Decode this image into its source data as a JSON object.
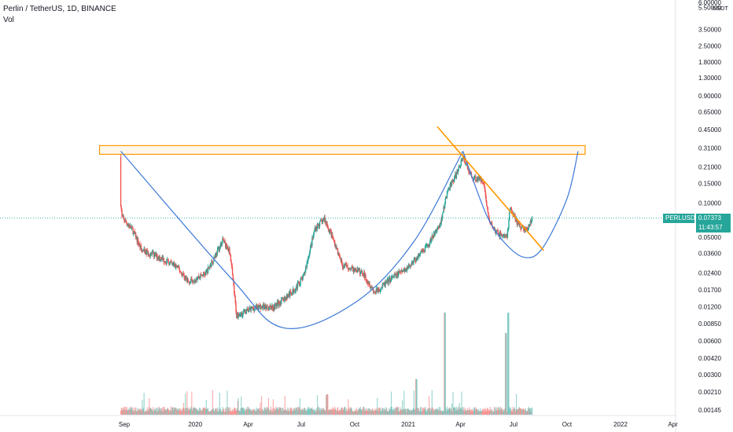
{
  "header": {
    "title": "Perlin / TetherUS, 1D, BINANCE",
    "volume_label": "Vol"
  },
  "colors": {
    "up": "#26a69a",
    "down": "#ef5350",
    "cup": "#3c78d8",
    "resistance": "#ff9800",
    "last_price_bg": "#26a69a",
    "symbol_tag_bg": "#26a69a"
  },
  "price_axis": {
    "unit": "USDT",
    "labels": [
      "6.00000",
      "5.50000",
      "3.50000",
      "2.50000",
      "1.80000",
      "1.30000",
      "0.90000",
      "0.65000",
      "0.45000",
      "0.31000",
      "0.21000",
      "0.15000",
      "0.10000",
      "0.05000",
      "0.03600",
      "0.02400",
      "0.01700",
      "0.01200",
      "0.00850",
      "0.00600",
      "0.00420",
      "0.00300",
      "0.00210",
      "0.00145"
    ]
  },
  "time_axis": {
    "labels": [
      "Sep",
      "2020",
      "Apr",
      "Jul",
      "Oct",
      "2021",
      "Apr",
      "Jul",
      "Oct",
      "2022",
      "Apr"
    ]
  },
  "last_price": {
    "symbol": "PERLUSDT",
    "price": "0.07373",
    "countdown": "11:43:57"
  },
  "chart_data": {
    "type": "candlestick",
    "scale": "log",
    "symbol": "PERLUSDT",
    "exchange": "BINANCE",
    "interval": "1D",
    "y_range": [
      0.0012,
      6.0
    ],
    "x_range": [
      "2019-08-20",
      "2022-05-01"
    ],
    "price_path": [
      {
        "date": "2019-08-26",
        "close": 0.1
      },
      {
        "date": "2019-08-28",
        "close": 0.075
      },
      {
        "date": "2019-09-15",
        "close": 0.058
      },
      {
        "date": "2019-10-01",
        "close": 0.038
      },
      {
        "date": "2019-11-01",
        "close": 0.033
      },
      {
        "date": "2019-12-01",
        "close": 0.027
      },
      {
        "date": "2019-12-20",
        "close": 0.02
      },
      {
        "date": "2020-01-20",
        "close": 0.024
      },
      {
        "date": "2020-02-18",
        "close": 0.047
      },
      {
        "date": "2020-03-01",
        "close": 0.036
      },
      {
        "date": "2020-03-12",
        "close": 0.01
      },
      {
        "date": "2020-04-15",
        "close": 0.012
      },
      {
        "date": "2020-05-15",
        "close": 0.012
      },
      {
        "date": "2020-06-15",
        "close": 0.016
      },
      {
        "date": "2020-07-05",
        "close": 0.022
      },
      {
        "date": "2020-07-25",
        "close": 0.06
      },
      {
        "date": "2020-08-10",
        "close": 0.072
      },
      {
        "date": "2020-08-25",
        "close": 0.048
      },
      {
        "date": "2020-09-10",
        "close": 0.028
      },
      {
        "date": "2020-10-15",
        "close": 0.024
      },
      {
        "date": "2020-11-05",
        "close": 0.016
      },
      {
        "date": "2020-12-01",
        "close": 0.021
      },
      {
        "date": "2021-01-01",
        "close": 0.027
      },
      {
        "date": "2021-02-01",
        "close": 0.04
      },
      {
        "date": "2021-02-25",
        "close": 0.065
      },
      {
        "date": "2021-03-10",
        "close": 0.13
      },
      {
        "date": "2021-03-25",
        "close": 0.18
      },
      {
        "date": "2021-04-05",
        "close": 0.26
      },
      {
        "date": "2021-04-20",
        "close": 0.17
      },
      {
        "date": "2021-05-10",
        "close": 0.16
      },
      {
        "date": "2021-05-20",
        "close": 0.07
      },
      {
        "date": "2021-06-01",
        "close": 0.055
      },
      {
        "date": "2021-06-20",
        "close": 0.05
      },
      {
        "date": "2021-06-25",
        "close": 0.09
      },
      {
        "date": "2021-07-10",
        "close": 0.063
      },
      {
        "date": "2021-07-25",
        "close": 0.058
      },
      {
        "date": "2021-08-02",
        "close": 0.0737
      }
    ],
    "volume_spikes": [
      {
        "date": "2021-03-05",
        "relative": 1.0
      },
      {
        "date": "2021-06-22",
        "relative": 1.0
      },
      {
        "date": "2021-06-18",
        "relative": 0.8
      },
      {
        "date": "2021-01-15",
        "relative": 0.35
      },
      {
        "date": "2020-08-15",
        "relative": 0.2
      }
    ],
    "drawings": {
      "resistance_zone": {
        "from": "2019-08-26",
        "to": "2021-10-20",
        "low": 0.272,
        "high": 0.325
      },
      "cup_arc": [
        {
          "date": "2019-08-26",
          "price": 0.29
        },
        {
          "date": "2020-03-01",
          "price": 0.022
        },
        {
          "date": "2020-06-01",
          "price": 0.0078
        },
        {
          "date": "2020-10-01",
          "price": 0.013
        },
        {
          "date": "2021-01-10",
          "price": 0.045
        },
        {
          "date": "2021-04-05",
          "price": 0.29
        }
      ],
      "handle_arc": [
        {
          "date": "2021-04-05",
          "price": 0.29
        },
        {
          "date": "2021-05-15",
          "price": 0.08
        },
        {
          "date": "2021-06-15",
          "price": 0.045
        },
        {
          "date": "2021-07-20",
          "price": 0.033
        },
        {
          "date": "2021-08-20",
          "price": 0.04
        },
        {
          "date": "2021-10-01",
          "price": 0.11
        },
        {
          "date": "2021-10-20",
          "price": 0.29
        }
      ],
      "trendline": {
        "from": {
          "date": "2021-02-20",
          "price": 0.48
        },
        "to": {
          "date": "2021-08-22",
          "price": 0.038
        }
      }
    }
  }
}
